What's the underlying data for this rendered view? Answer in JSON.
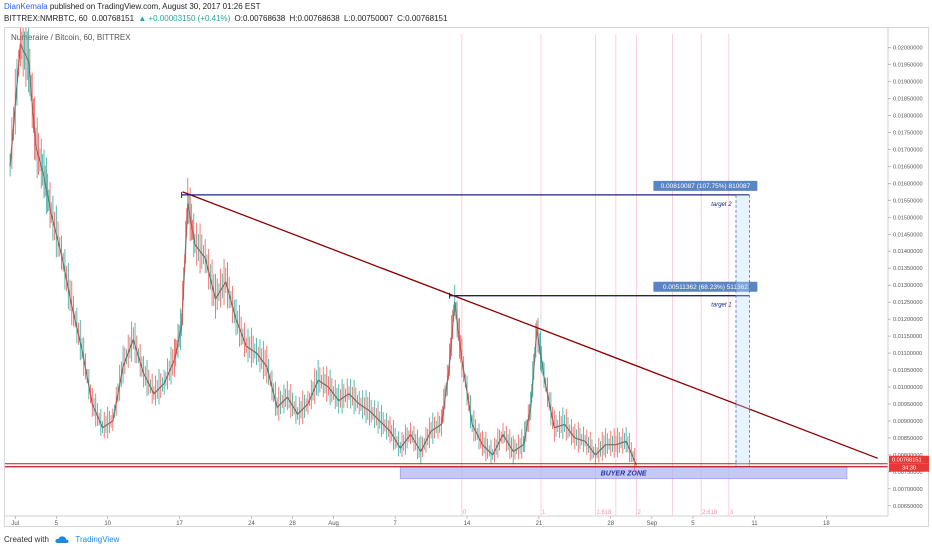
{
  "header": {
    "author": "DianKemala",
    "published": "published on TradingView.com, August 30, 2017 01:26 EST",
    "symbol_interval": "BITTREX:NMRBTC, 60",
    "last": "0.00768151",
    "change": "▲ +0.00003150 (+0.41%)",
    "open": "O:0.00768638",
    "high": "H:0.00768638",
    "low": "L:0.00750007",
    "close": "C:0.00768151"
  },
  "chart_title": "Numeraire / Bitcoin, 60, BITTREX",
  "footer": {
    "created_with": "Created with",
    "brand": "TradingView"
  },
  "colors": {
    "up": "#26a69a",
    "down": "#ef5350",
    "price": "#7a5c52",
    "trendline": "#8b0000",
    "target_line": "#1a237e",
    "buyer_zone": "#b3b6f4",
    "support": "#b71c1c",
    "label_bg": "#5b84c4",
    "price_tag": "#e53935",
    "fib": "#f48fb1"
  },
  "chart_data": {
    "type": "line",
    "symbol": "NMRBTC",
    "title": "Numeraire / Bitcoin, 60, BITTREX",
    "xlabel": "",
    "ylabel": "",
    "x_ticks": [
      {
        "label": "Jul",
        "day": 1
      },
      {
        "label": "5",
        "day": 5
      },
      {
        "label": "10",
        "day": 10
      },
      {
        "label": "17",
        "day": 17
      },
      {
        "label": "24",
        "day": 24
      },
      {
        "label": "28",
        "day": 28
      },
      {
        "label": "Aug",
        "day": 32
      },
      {
        "label": "7",
        "day": 38
      },
      {
        "label": "14",
        "day": 45
      },
      {
        "label": "21",
        "day": 52
      },
      {
        "label": "28",
        "day": 59
      },
      {
        "label": "Sep",
        "day": 63
      },
      {
        "label": "5",
        "day": 67
      },
      {
        "label": "11",
        "day": 73
      },
      {
        "label": "18",
        "day": 80
      }
    ],
    "y_ticks": [
      "0.02000000",
      "0.01950000",
      "0.01900000",
      "0.01850000",
      "0.01800000",
      "0.01750000",
      "0.01700000",
      "0.01650000",
      "0.01600000",
      "0.01550000",
      "0.01500000",
      "0.01450000",
      "0.01400000",
      "0.01350000",
      "0.01300000",
      "0.01250000",
      "0.01200000",
      "0.01150000",
      "0.01100000",
      "0.01050000",
      "0.01000000",
      "0.00950000",
      "0.00900000",
      "0.00850000",
      "0.00800000",
      "0.00750000",
      "0.00700000",
      "0.00650000"
    ],
    "ylim": [
      0.0062,
      0.0204
    ],
    "xlim": [
      0,
      86
    ],
    "price": {
      "x": [
        0.5,
        1.5,
        2.3,
        3,
        3.8,
        4.5,
        5.5,
        6.5,
        7.5,
        8.5,
        9.5,
        10.5,
        11.5,
        12.5,
        13.5,
        14.5,
        15.5,
        16.5,
        17.2,
        17.8,
        18.5,
        19.5,
        20.5,
        21.5,
        22.5,
        23.5,
        24.5,
        25.5,
        26.5,
        27.5,
        28.5,
        29.5,
        30.5,
        31.5,
        32.5,
        33.5,
        34.5,
        35.5,
        36.5,
        37.5,
        38.5,
        39.5,
        40.5,
        41.5,
        42.5,
        43.2,
        43.8,
        44.5,
        45.5,
        46.5,
        47.5,
        48.5,
        49.5,
        50.5,
        51.2,
        51.8,
        52.5,
        53.5,
        54.5,
        55.5,
        56.5,
        57.5,
        58.5,
        59.5,
        60.5,
        61.5
      ],
      "y": [
        0.0165,
        0.0201,
        0.0196,
        0.0171,
        0.0162,
        0.0151,
        0.0139,
        0.0124,
        0.0111,
        0.0095,
        0.0088,
        0.009,
        0.0106,
        0.0114,
        0.0104,
        0.0098,
        0.0101,
        0.0108,
        0.0118,
        0.0154,
        0.0142,
        0.0138,
        0.0126,
        0.0131,
        0.012,
        0.0112,
        0.011,
        0.0106,
        0.0094,
        0.0097,
        0.0092,
        0.0095,
        0.0102,
        0.01,
        0.0096,
        0.0098,
        0.0095,
        0.0093,
        0.009,
        0.0087,
        0.0082,
        0.0086,
        0.0081,
        0.0087,
        0.0089,
        0.0104,
        0.0125,
        0.0108,
        0.0089,
        0.0083,
        0.008,
        0.0086,
        0.0081,
        0.0083,
        0.0094,
        0.0117,
        0.0103,
        0.0088,
        0.0089,
        0.0085,
        0.0084,
        0.008,
        0.0083,
        0.0083,
        0.0084,
        0.0077
      ]
    },
    "price_current": "0.00768151",
    "countdown": "34:30",
    "annotations": {
      "trendline": {
        "x": [
          17.3,
          85
        ],
        "y": [
          0.01575,
          0.0079
        ]
      },
      "target2": {
        "level": 0.01566,
        "x": [
          17.2,
          72.5
        ],
        "label": "target 2",
        "measure": "0.00810087 (107.75%) 810087"
      },
      "target1": {
        "level": 0.01269,
        "x": [
          43.3,
          72.5
        ],
        "label": "target 1",
        "measure": "0.00511362 (68.23%) 511362"
      },
      "support": {
        "level": 0.00768
      },
      "buyer_zone": {
        "label": "BUYER ZONE",
        "x": [
          38.5,
          82
        ],
        "y": [
          0.0073,
          0.00766
        ]
      },
      "vertical_dashed": [
        71.2,
        72.5
      ],
      "fib_times": [
        44.5,
        52.2,
        57.5,
        59.5,
        61.5,
        65.0,
        67.8,
        70.5
      ],
      "fib_labels": [
        {
          "text": "0",
          "x": 44.5
        },
        {
          "text": "1",
          "x": 52.2
        },
        {
          "text": "1.618",
          "x": 57.5
        },
        {
          "text": "2",
          "x": 61.5
        },
        {
          "text": "2.618",
          "x": 67.8
        },
        {
          "text": "3",
          "x": 70.5
        }
      ]
    }
  }
}
